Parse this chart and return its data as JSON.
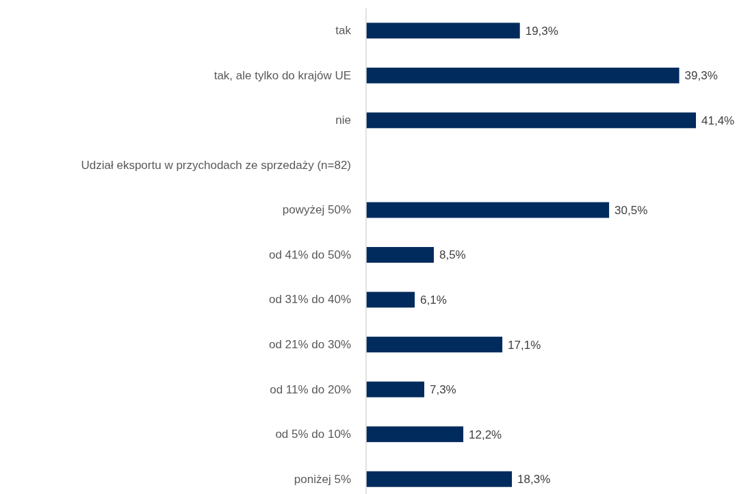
{
  "chart_data": {
    "type": "bar",
    "orientation": "horizontal",
    "categories": [
      "tak",
      "tak, ale tylko do krajów UE",
      "nie",
      "Udział eksportu w przychodach ze sprzedaży (n=82)",
      "powyżej 50%",
      "od 41% do 50%",
      "od 31% do 40%",
      "od 21% do 30%",
      "od 11% do 20%",
      "od 5% do 10%",
      "poniżej 5%"
    ],
    "values": [
      19.3,
      39.3,
      41.4,
      null,
      30.5,
      8.5,
      6.1,
      17.1,
      7.3,
      12.2,
      18.3
    ],
    "value_labels": [
      "19,3%",
      "39,3%",
      "41,4%",
      null,
      "30,5%",
      "8,5%",
      "6,1%",
      "17,1%",
      "7,3%",
      "12,2%",
      "18,3%"
    ],
    "color": "#002b5c"
  }
}
